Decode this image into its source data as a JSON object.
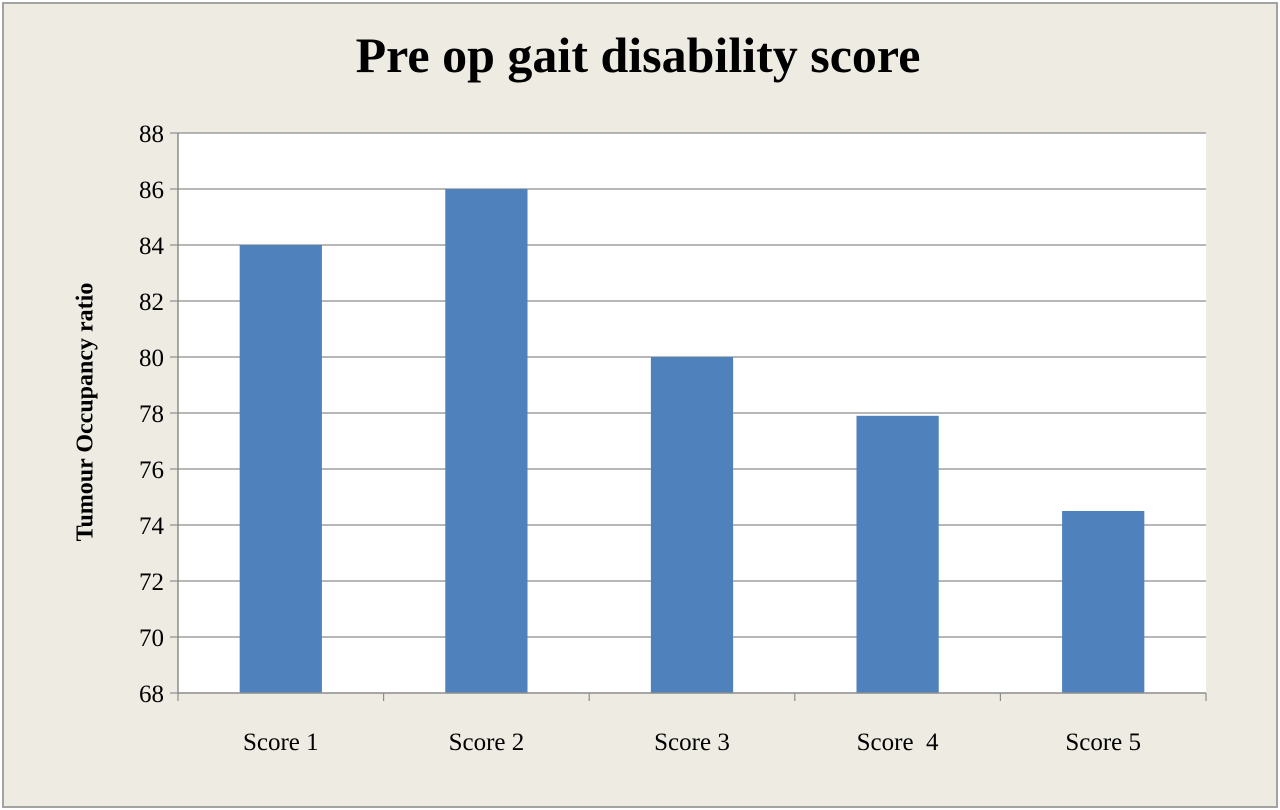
{
  "chart_data": {
    "type": "bar",
    "title": "Pre op gait disability score",
    "xlabel": "",
    "ylabel": "Tumour Occupancy ratio",
    "categories": [
      "Score 1",
      "Score 2",
      "Score 3",
      "Score  4",
      "Score 5"
    ],
    "values": [
      84,
      86,
      80,
      77.9,
      74.5
    ],
    "ylim": [
      68,
      88
    ],
    "yticks": [
      "68",
      "70",
      "72",
      "74",
      "76",
      "78",
      "80",
      "82",
      "84",
      "86",
      "88"
    ],
    "grid": true,
    "legend": "none",
    "colors": {
      "bar": "#4f81bd",
      "plot_background": "#ffffff",
      "chart_background": "#eeebe2",
      "grid": "#8c8c8c",
      "axis": "#8c8c8c"
    }
  }
}
